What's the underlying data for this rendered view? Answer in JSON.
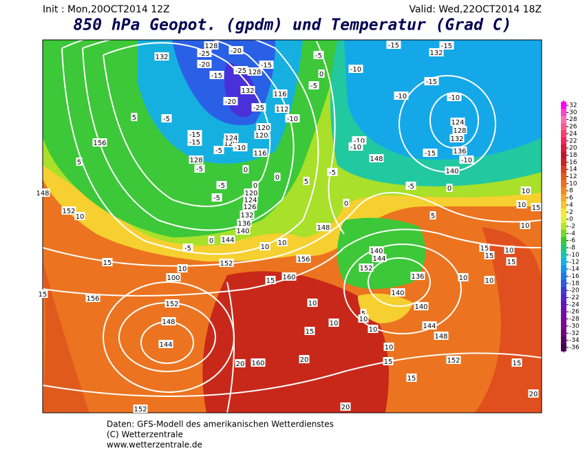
{
  "header": {
    "init": "Init : Mon,20OCT2014 12Z",
    "valid": "Valid: Wed,22OCT2014 18Z",
    "title": "850 hPa Geopot. (gpdm) und Temperatur (Grad C)"
  },
  "footer": [
    "Daten: GFS-Modell des amerikanischen Wetterdienstes",
    "(C) Wetterzentrale",
    "www.wetterzentrale.de"
  ],
  "colorbar": {
    "labels": [
      32,
      30,
      28,
      26,
      24,
      22,
      20,
      18,
      16,
      14,
      12,
      10,
      8,
      6,
      4,
      2,
      0,
      -2,
      -4,
      -6,
      -8,
      -10,
      -12,
      -14,
      -16,
      -18,
      -20,
      -22,
      -24,
      -26,
      -28,
      -30,
      -32,
      -34,
      -36
    ],
    "colors": [
      "#ff00ff",
      "#ff40d0",
      "#ff70b0",
      "#ff5a8c",
      "#ff3c6e",
      "#f0285a",
      "#d81e3c",
      "#c0142a",
      "#d02020",
      "#e03c1e",
      "#e8581e",
      "#ee7020",
      "#f28c22",
      "#f6aa26",
      "#f8c82a",
      "#f8e62e",
      "#e6f02e",
      "#b4e62a",
      "#78d828",
      "#3cc830",
      "#20c870",
      "#10c8b4",
      "#10b4e6",
      "#1496f0",
      "#1e78f0",
      "#2a5ae6",
      "#3c3cdc",
      "#5028d0",
      "#6414c0",
      "#7010b0",
      "#7a0aa0",
      "#78088c",
      "#6a0678",
      "#580464",
      "#460250"
    ]
  },
  "contour_labels": [
    132,
    -25,
    128,
    -20,
    -15,
    -25,
    128,
    -15,
    -20,
    132,
    -20,
    -25,
    116,
    112,
    -10,
    120,
    120,
    120,
    124,
    -10,
    116,
    -15,
    -15,
    -5,
    128,
    -5,
    0,
    0,
    -5,
    0,
    -5,
    5,
    120,
    124,
    126,
    132,
    136,
    140,
    144,
    0,
    -5,
    10,
    10,
    148,
    152,
    156,
    160,
    15,
    10,
    100,
    15,
    15,
    156,
    10,
    152,
    148,
    156,
    5,
    -5,
    5,
    -5,
    0,
    -5,
    -10,
    -15,
    132,
    -15,
    -15,
    -10,
    -10,
    124,
    128,
    132,
    136,
    -10,
    140,
    -15,
    148,
    -10,
    -10,
    -5,
    -5,
    0,
    0,
    10,
    10,
    15,
    10,
    5,
    140,
    144,
    152,
    136,
    140,
    140,
    10,
    10,
    15,
    15,
    10,
    15,
    10,
    10,
    15,
    144,
    148,
    152,
    15,
    20,
    15,
    15,
    10,
    20,
    20,
    160,
    152,
    148,
    144,
    152,
    20,
    5,
    10,
    10
  ]
}
